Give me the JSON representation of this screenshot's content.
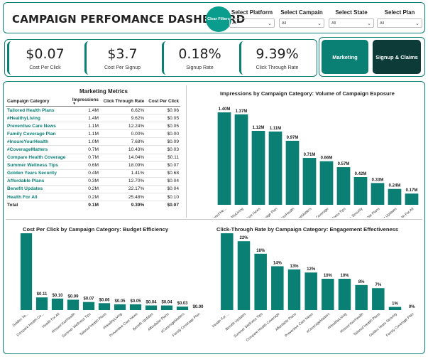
{
  "header": {
    "title": "CAMPAIGN PERFOMANCE DASHBOARD",
    "clear_filters": "Clear Filters",
    "slicers": [
      {
        "label": "Select Platform",
        "value": "All"
      },
      {
        "label": "Select Campain",
        "value": "All"
      },
      {
        "label": "Select State",
        "value": "All"
      },
      {
        "label": "Select Plan",
        "value": "All"
      }
    ]
  },
  "kpis": [
    {
      "value": "$0.07",
      "label": "Cost Per Click"
    },
    {
      "value": "$3.7",
      "label": "Cost Per Signup"
    },
    {
      "value": "0.18%",
      "label": "Signup Rate"
    },
    {
      "value": "9.39%",
      "label": "Click Through Rate"
    }
  ],
  "nav": {
    "marketing": "Marketing",
    "signup": "Signup & Claims"
  },
  "colors": {
    "accent": "#0a7f74",
    "dark": "#0d3b37"
  },
  "table": {
    "title": "Marketing Metrics",
    "columns": [
      "Campaign Category",
      "Impressions",
      "Click Through Rate",
      "Cost Per Click"
    ],
    "rows": [
      [
        "Tailored Health Plans",
        "1.4M",
        "6.62%",
        "$0.06"
      ],
      [
        "#HealthyLiving",
        "1.4M",
        "9.62%",
        "$0.05"
      ],
      [
        "Preventive Care News",
        "1.1M",
        "12.24%",
        "$0.05"
      ],
      [
        "Family Coverage Plan",
        "1.1M",
        "0.00%",
        "$0.00"
      ],
      [
        "#InsureYourHealth",
        "1.0M",
        "7.68%",
        "$0.09"
      ],
      [
        "#CoverageMatters",
        "0.7M",
        "10.43%",
        "$0.03"
      ],
      [
        "Compare Health Coverage",
        "0.7M",
        "14.04%",
        "$0.11"
      ],
      [
        "Summer Wellness Tips",
        "0.6M",
        "18.09%",
        "$0.07"
      ],
      [
        "Golden Years Security",
        "0.4M",
        "1.41%",
        "$0.68"
      ],
      [
        "Affordable Plans",
        "0.3M",
        "12.70%",
        "$0.04"
      ],
      [
        "Benefit Updates",
        "0.2M",
        "22.17%",
        "$0.04"
      ],
      [
        "Health For All",
        "0.2M",
        "25.48%",
        "$0.10"
      ]
    ],
    "total": [
      "Total",
      "9.1M",
      "9.39%",
      "$0.07"
    ]
  },
  "chart_data": [
    {
      "type": "bar",
      "title": "Impressions by Campaign Category: Volume of Campaign Exposure",
      "categories": [
        "Tailored He...",
        "#HealthyLiving",
        "Preventive Care News",
        "Family Coverage Plan",
        "#InsureYourHealth",
        "#CoverageMatters",
        "Compare Health Coverage",
        "Summer Wellness Tips",
        "Golden Years Security",
        "Affordable Plans",
        "Benefit Updates",
        "Health For All"
      ],
      "values": [
        1.4,
        1.37,
        1.12,
        1.11,
        0.97,
        0.71,
        0.66,
        0.57,
        0.42,
        0.33,
        0.24,
        0.17
      ],
      "labels": [
        "1.40M",
        "1.37M",
        "1.12M",
        "1.11M",
        "0.97M",
        "0.71M",
        "0.66M",
        "0.57M",
        "0.42M",
        "0.33M",
        "0.24M",
        "0.17M"
      ],
      "ylim": [
        0,
        1.4
      ]
    },
    {
      "type": "bar",
      "title": "Cost Per Click by Campaign Category: Budget Efficiency",
      "categories": [
        "Golden Ye...",
        "Compare Health Co...",
        "Health For All",
        "#InsureYourHealth",
        "Summer Wellness Tips",
        "Tailored Health Plans",
        "#HealthyLiving",
        "Preventive Care News",
        "Benefit Updates",
        "Affordable Plans",
        "#CoverageMatters",
        "Family Coverage Plan"
      ],
      "values": [
        0.68,
        0.11,
        0.1,
        0.09,
        0.07,
        0.06,
        0.05,
        0.05,
        0.04,
        0.04,
        0.03,
        0.0
      ],
      "labels": [
        "$0.68",
        "$0.11",
        "$0.10",
        "$0.09",
        "$0.07",
        "$0.06",
        "$0.05",
        "$0.05",
        "$0.04",
        "$0.04",
        "$0.03",
        "$0.00"
      ],
      "ylim": [
        0,
        0.68
      ]
    },
    {
      "type": "bar",
      "title": "Click-Through Rate by Campaign Category: Engagement Effectiveness",
      "categories": [
        "Health For ...",
        "Benefit Updates",
        "Summer Wellness Tips",
        "Compare Health Coverage",
        "Affordable Plans",
        "Preventive Care News",
        "#CoverageMatters",
        "#HealthyLiving",
        "#InsureYourHealth",
        "Tailored Health Plans",
        "Golden Years Security",
        "Family Coverage Plan"
      ],
      "values": [
        25,
        22,
        18,
        14,
        13,
        12,
        10,
        10,
        8,
        7,
        1,
        0
      ],
      "labels": [
        "25%",
        "22%",
        "18%",
        "14%",
        "13%",
        "12%",
        "10%",
        "10%",
        "8%",
        "7%",
        "1%",
        "0%"
      ],
      "ylim": [
        0,
        25
      ]
    }
  ]
}
